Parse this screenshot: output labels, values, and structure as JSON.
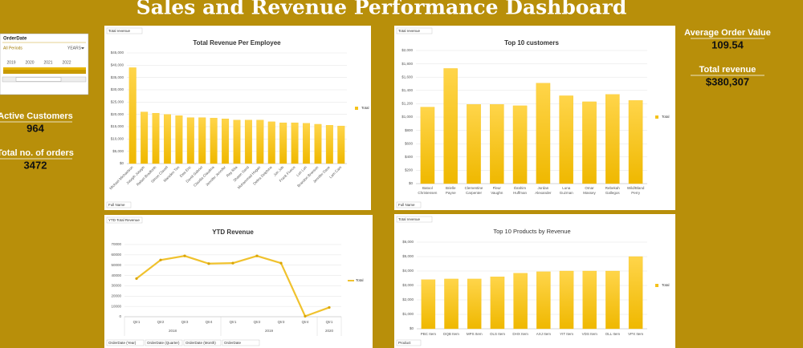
{
  "title": "Sales and Revenue Performance Dashboard",
  "filter": {
    "field": "OrderDate",
    "selection": "All Periods",
    "level": "YEARS",
    "years": [
      "2019",
      "2020",
      "2021",
      "2022"
    ]
  },
  "kpis_left": [
    {
      "label": "Active Customers",
      "value": "964"
    },
    {
      "label": "Total no. of orders",
      "value": "3472"
    }
  ],
  "kpis_right": [
    {
      "label": "Average Order Value",
      "value": "109.54"
    },
    {
      "label": "Total revenue",
      "value": "$380,307"
    }
  ],
  "chart_data": [
    {
      "type": "bar",
      "title": "Total Revenue Per Employee",
      "field_buttons": [
        "Total revenue"
      ],
      "axis_buttons": [
        "Full Name"
      ],
      "label_style": "rotated",
      "categories": [
        "Michael Michaelson",
        "Joseph Joseph",
        "Rafael Bradforth",
        "Simon Clavell",
        "Marsden Tim",
        "Ewa Eric",
        "David Gabriel",
        "Claudia Claudina",
        "Jennifer Jennifer",
        "Ray Rita",
        "Shawn Sand",
        "Muhammad Hogan",
        "Debra Delphine",
        "Jon Job",
        "Frank Fiveco",
        "Lori Lori",
        "Brandon Branson",
        "Jennifer Dave",
        "Lam Cam"
      ],
      "series": [
        {
          "name": "Total",
          "color": "#f5c21b",
          "values": [
            39000,
            21000,
            20500,
            20000,
            19500,
            18700,
            18700,
            18500,
            18200,
            17700,
            17700,
            17700,
            17000,
            16600,
            16600,
            16400,
            16000,
            15600,
            15300
          ]
        }
      ],
      "ylim": [
        0,
        45000
      ],
      "yticks": [
        {
          "value": 0,
          "label": "$0"
        },
        {
          "value": 5000,
          "label": "$5,000"
        },
        {
          "value": 10000,
          "label": "$10,000"
        },
        {
          "value": 15000,
          "label": "$15,000"
        },
        {
          "value": 20000,
          "label": "$20,000"
        },
        {
          "value": 25000,
          "label": "$25,000"
        },
        {
          "value": 30000,
          "label": "$30,000"
        },
        {
          "value": 35000,
          "label": "$35,000"
        },
        {
          "value": 40000,
          "label": "$40,000"
        },
        {
          "value": 45000,
          "label": "$45,000"
        }
      ],
      "grid": true
    },
    {
      "type": "bar",
      "title": "Top 10 customers",
      "field_buttons": [
        "Total revenue"
      ],
      "axis_buttons": [
        "Full Name"
      ],
      "label_style": "wrapped",
      "categories": [
        "Batool Christensen",
        "Brielle Payne",
        "Clementine Carpenter",
        "Fleur Vaughn",
        "Ibrahim Huffman",
        "Jordan Alexander",
        "Luna Guzman",
        "Omar Massey",
        "Rebekah Gallegos",
        "Wild/Bland Perry"
      ],
      "series": [
        {
          "name": "Total",
          "color": "#f5c21b",
          "values": [
            1150,
            1730,
            1190,
            1190,
            1170,
            1510,
            1320,
            1230,
            1340,
            1250
          ]
        }
      ],
      "ylim": [
        0,
        2000
      ],
      "yticks": [
        {
          "value": 0,
          "label": "$0"
        },
        {
          "value": 200,
          "label": "$200"
        },
        {
          "value": 400,
          "label": "$400"
        },
        {
          "value": 600,
          "label": "$600"
        },
        {
          "value": 800,
          "label": "$800"
        },
        {
          "value": 1000,
          "label": "$1,000"
        },
        {
          "value": 1200,
          "label": "$1,200"
        },
        {
          "value": 1400,
          "label": "$1,400"
        },
        {
          "value": 1600,
          "label": "$1,600"
        },
        {
          "value": 1800,
          "label": "$1,800"
        },
        {
          "value": 2000,
          "label": "$2,000"
        }
      ],
      "grid": true
    },
    {
      "type": "line",
      "title": "YTD Revenue",
      "field_buttons": [
        "YTD Total Revenue"
      ],
      "axis_buttons": [
        "OrderDate (Year)",
        "OrderDate (Quarter)",
        "OrderDate (Month)",
        "OrderDate"
      ],
      "label_style": "flat",
      "categories": [
        "Qtr1",
        "Qtr2",
        "Qtr3",
        "Qtr4",
        "Qtr1",
        "Qtr2",
        "Qtr3",
        "Qtr4",
        "Qtr1"
      ],
      "groups": [
        {
          "label": "2018",
          "size": 4
        },
        {
          "label": "2019",
          "size": 4
        },
        {
          "label": "2020",
          "size": 1
        }
      ],
      "series": [
        {
          "name": "Total",
          "color": "#f0c22e",
          "values": [
            37000,
            55000,
            59000,
            51500,
            52000,
            59000,
            52000,
            500,
            9000
          ]
        }
      ],
      "ylim": [
        0,
        70000
      ],
      "yticks": [
        0,
        10000,
        20000,
        30000,
        40000,
        50000,
        60000,
        70000
      ],
      "grid": true
    },
    {
      "type": "bar",
      "title": "Top 10 Products by Revenue",
      "field_buttons": [
        "Total revenue"
      ],
      "axis_buttons": [
        "Product"
      ],
      "label_style": "flat",
      "categories": [
        "PBC Item",
        "DQB Item",
        "MPS Item",
        "OLS Item",
        "DHX Item",
        "AXJ Item",
        "YIT Item",
        "VDS Item",
        "OLL Item",
        "VPX Item"
      ],
      "series": [
        {
          "name": "Total",
          "color": "#f5c21b",
          "values": [
            3400,
            3450,
            3450,
            3600,
            3850,
            3950,
            4000,
            4000,
            4000,
            5000
          ]
        }
      ],
      "ylim": [
        0,
        6000
      ],
      "yticks": [
        {
          "value": 0,
          "label": "$0"
        },
        {
          "value": 1000,
          "label": "$1,000"
        },
        {
          "value": 2000,
          "label": "$2,000"
        },
        {
          "value": 3000,
          "label": "$3,000"
        },
        {
          "value": 4000,
          "label": "$4,000"
        },
        {
          "value": 5000,
          "label": "$5,000"
        },
        {
          "value": 6000,
          "label": "$6,000"
        }
      ],
      "grid": true
    }
  ]
}
